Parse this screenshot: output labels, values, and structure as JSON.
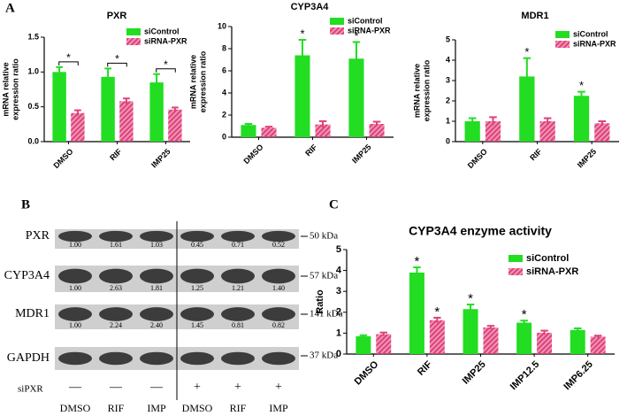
{
  "panel_labels": [
    "A",
    "B",
    "C"
  ],
  "chart_data": [
    {
      "type": "bar",
      "title": "PXR",
      "y_label": [
        "mRNA relative",
        "expression ratio"
      ],
      "categories": [
        "DMSO",
        "RIF",
        "IMP25"
      ],
      "series": [
        {
          "name": "siControl",
          "color": "#22dd22",
          "hatch": false,
          "values": [
            1.0,
            0.93,
            0.85
          ],
          "errors": [
            0.07,
            0.12,
            0.12
          ],
          "marks": [
            "*",
            "*",
            "*"
          ]
        },
        {
          "name": "siRNA-PXR",
          "color": "#e0407a",
          "hatch": true,
          "values": [
            0.41,
            0.58,
            0.46
          ],
          "errors": [
            0.04,
            0.04,
            0.03
          ],
          "marks": [
            null,
            null,
            null
          ]
        }
      ],
      "ylim": [
        0,
        1.5
      ],
      "yticks": [
        {
          "value": 0,
          "label": "0.0"
        },
        {
          "value": 0.5,
          "label": "0.5"
        },
        {
          "value": 1,
          "label": "1.0"
        },
        {
          "value": 1.5,
          "label": "1.5"
        }
      ],
      "legend": "upper right",
      "significance_bracket": true
    },
    {
      "type": "bar",
      "title": "CYP3A4",
      "y_label": [
        "mRNA relative",
        "expression ratio"
      ],
      "categories": [
        "DMSO",
        "RIF",
        "IMP25"
      ],
      "series": [
        {
          "name": "siControl",
          "color": "#22dd22",
          "hatch": false,
          "values": [
            1.1,
            7.4,
            7.1
          ],
          "errors": [
            0.1,
            1.4,
            1.5
          ],
          "marks": [
            null,
            "*",
            "*"
          ]
        },
        {
          "name": "siRNA-PXR",
          "color": "#e0407a",
          "hatch": true,
          "values": [
            0.85,
            1.15,
            1.2
          ],
          "errors": [
            0.1,
            0.3,
            0.2
          ],
          "marks": [
            null,
            null,
            null
          ]
        }
      ],
      "ylim": [
        0,
        10
      ],
      "yticks": [
        0,
        2,
        4,
        6,
        8,
        10
      ],
      "legend": "upper right",
      "significance_bracket": false
    },
    {
      "type": "bar",
      "title": "MDR1",
      "y_label": [
        "mRNA relative",
        "expression ratio"
      ],
      "categories": [
        "DMSO",
        "RIF",
        "IMP25"
      ],
      "series": [
        {
          "name": "siControl",
          "color": "#22dd22",
          "hatch": false,
          "values": [
            1.0,
            3.2,
            2.25
          ],
          "errors": [
            0.15,
            0.9,
            0.2
          ],
          "marks": [
            null,
            "*",
            "*"
          ]
        },
        {
          "name": "siRNA-PXR",
          "color": "#e0407a",
          "hatch": true,
          "values": [
            1.0,
            1.0,
            0.9
          ],
          "errors": [
            0.2,
            0.15,
            0.1
          ],
          "marks": [
            null,
            null,
            null
          ]
        }
      ],
      "ylim": [
        0,
        5
      ],
      "yticks": [
        0,
        1,
        2,
        3,
        4,
        5
      ],
      "legend": "upper right",
      "significance_bracket": false
    },
    {
      "type": "bar",
      "title": "CYP3A4 enzyme activity",
      "y_label": [
        "Ratio"
      ],
      "categories": [
        "DMSO",
        "RIF",
        "IMP25",
        "IMP12.5",
        "IMP6.25"
      ],
      "series": [
        {
          "name": "siControl",
          "color": "#22dd22",
          "hatch": false,
          "values": [
            0.85,
            3.9,
            2.15,
            1.5,
            1.15
          ],
          "errors": [
            0.05,
            0.25,
            0.22,
            0.1,
            0.08
          ],
          "marks": [
            null,
            "*",
            "*",
            "*",
            null
          ]
        },
        {
          "name": "siRNA-PXR",
          "color": "#e0407a",
          "hatch": true,
          "values": [
            0.95,
            1.62,
            1.27,
            1.02,
            0.83
          ],
          "errors": [
            0.08,
            0.12,
            0.08,
            0.1,
            0.05
          ],
          "marks": [
            null,
            "*",
            null,
            null,
            null
          ]
        }
      ],
      "ylim": [
        0,
        5
      ],
      "yticks": [
        0,
        1,
        2,
        3,
        4,
        5
      ],
      "legend": "upper right",
      "significance_bracket": false
    }
  ],
  "blot": {
    "rows": [
      {
        "protein": "PXR",
        "size": "50 kDa",
        "quant": [
          "1.00",
          "1.61",
          "1.03",
          "0.45",
          "0.71",
          "0.52"
        ]
      },
      {
        "protein": "CYP3A4",
        "size": "57 kDa",
        "quant": [
          "1.00",
          "2.63",
          "1.81",
          "1.25",
          "1.21",
          "1.40"
        ]
      },
      {
        "protein": "MDR1",
        "size": "141 kDa",
        "quant": [
          "1.00",
          "2.24",
          "2.40",
          "1.45",
          "0.81",
          "0.82"
        ]
      },
      {
        "protein": "GAPDH",
        "size": "37 kDa",
        "quant": null
      }
    ],
    "treatment_label": "siPXR",
    "treatment": [
      "—",
      "—",
      "—",
      "+",
      "+",
      "+"
    ],
    "lanes": [
      "DMSO",
      "RIF",
      "IMP",
      "DMSO",
      "RIF",
      "IMP"
    ]
  }
}
